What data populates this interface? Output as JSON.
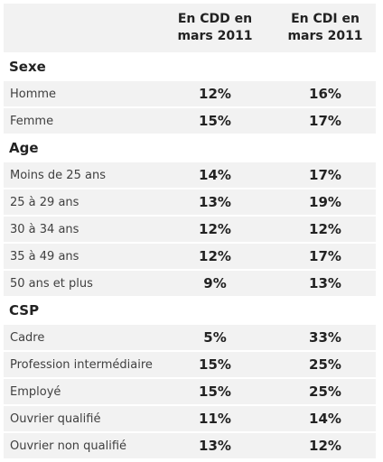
{
  "header": {
    "col1": "En CDD en\nmars 2011",
    "col2": "En CDI en\nmars 2011"
  },
  "sections": [
    {
      "title": "Sexe",
      "rows": [
        {
          "label": "Homme",
          "cdd": "12%",
          "cdi": "16%"
        },
        {
          "label": "Femme",
          "cdd": "15%",
          "cdi": "17%"
        }
      ]
    },
    {
      "title": "Age",
      "rows": [
        {
          "label": "Moins de 25 ans",
          "cdd": "14%",
          "cdi": "17%"
        },
        {
          "label": "25 à 29 ans",
          "cdd": "13%",
          "cdi": "19%"
        },
        {
          "label": "30 à 34 ans",
          "cdd": "12%",
          "cdi": "12%"
        },
        {
          "label": "35 à 49 ans",
          "cdd": "12%",
          "cdi": "17%"
        },
        {
          "label": "50 ans et plus",
          "cdd": "9%",
          "cdi": "13%"
        }
      ]
    },
    {
      "title": "CSP",
      "rows": [
        {
          "label": "Cadre",
          "cdd": "5%",
          "cdi": "33%"
        },
        {
          "label": "Profession intermédiaire",
          "cdd": "15%",
          "cdi": "25%"
        },
        {
          "label": "Employé",
          "cdd": "15%",
          "cdi": "25%"
        },
        {
          "label": "Ouvrier qualifié",
          "cdd": "11%",
          "cdi": "14%"
        },
        {
          "label": "Ouvrier non qualifié",
          "cdd": "13%",
          "cdi": "12%"
        }
      ]
    }
  ]
}
